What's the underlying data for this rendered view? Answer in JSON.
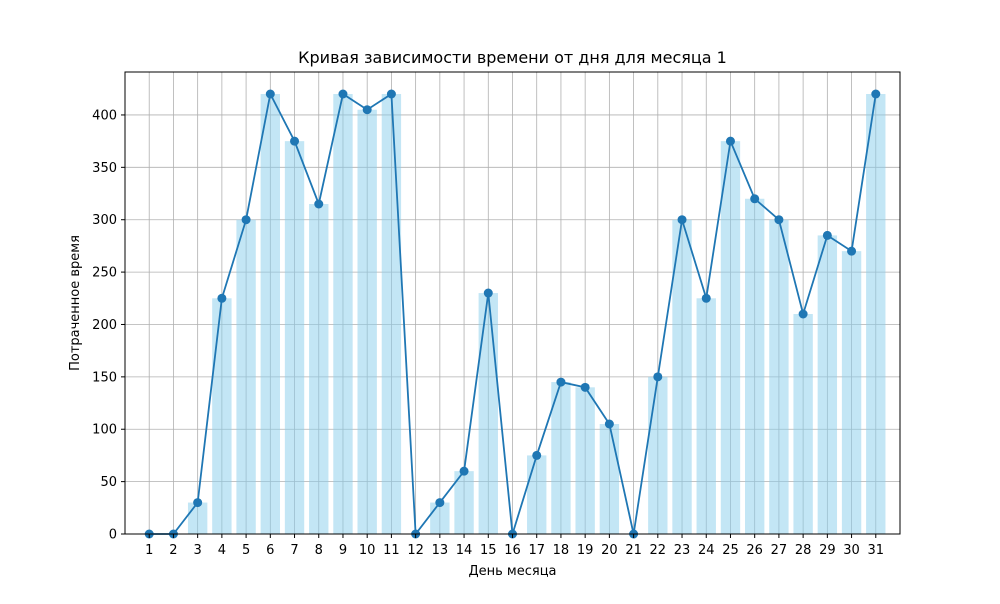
{
  "chart_data": {
    "type": "bar",
    "title": "Кривая зависимости времени от дня для месяца 1",
    "xlabel": "День месяца",
    "ylabel": "Потраченное время",
    "categories": [
      "1",
      "2",
      "3",
      "4",
      "5",
      "6",
      "7",
      "8",
      "9",
      "10",
      "11",
      "12",
      "13",
      "14",
      "15",
      "16",
      "17",
      "18",
      "19",
      "20",
      "21",
      "22",
      "23",
      "24",
      "25",
      "26",
      "27",
      "28",
      "29",
      "30",
      "31"
    ],
    "values": [
      0,
      0,
      30,
      225,
      300,
      420,
      375,
      315,
      420,
      405,
      420,
      0,
      30,
      60,
      230,
      0,
      75,
      145,
      140,
      105,
      0,
      150,
      300,
      225,
      375,
      320,
      300,
      210,
      285,
      270,
      420
    ],
    "series": [
      {
        "type": "bar",
        "color": "#87ceeb",
        "values": [
          0,
          0,
          30,
          225,
          300,
          420,
          375,
          315,
          420,
          405,
          420,
          0,
          30,
          60,
          230,
          0,
          75,
          145,
          140,
          105,
          0,
          150,
          300,
          225,
          375,
          320,
          300,
          210,
          285,
          270,
          420
        ]
      },
      {
        "type": "line",
        "marker": "circle",
        "color": "#1f77b4",
        "values": [
          0,
          0,
          30,
          225,
          300,
          420,
          375,
          315,
          420,
          405,
          420,
          0,
          30,
          60,
          230,
          0,
          75,
          145,
          140,
          105,
          0,
          150,
          300,
          225,
          375,
          320,
          300,
          210,
          285,
          270,
          420
        ]
      }
    ],
    "yticks": [
      0,
      50,
      100,
      150,
      200,
      250,
      300,
      350,
      400
    ],
    "ylim": [
      0,
      441
    ],
    "grid": true
  }
}
